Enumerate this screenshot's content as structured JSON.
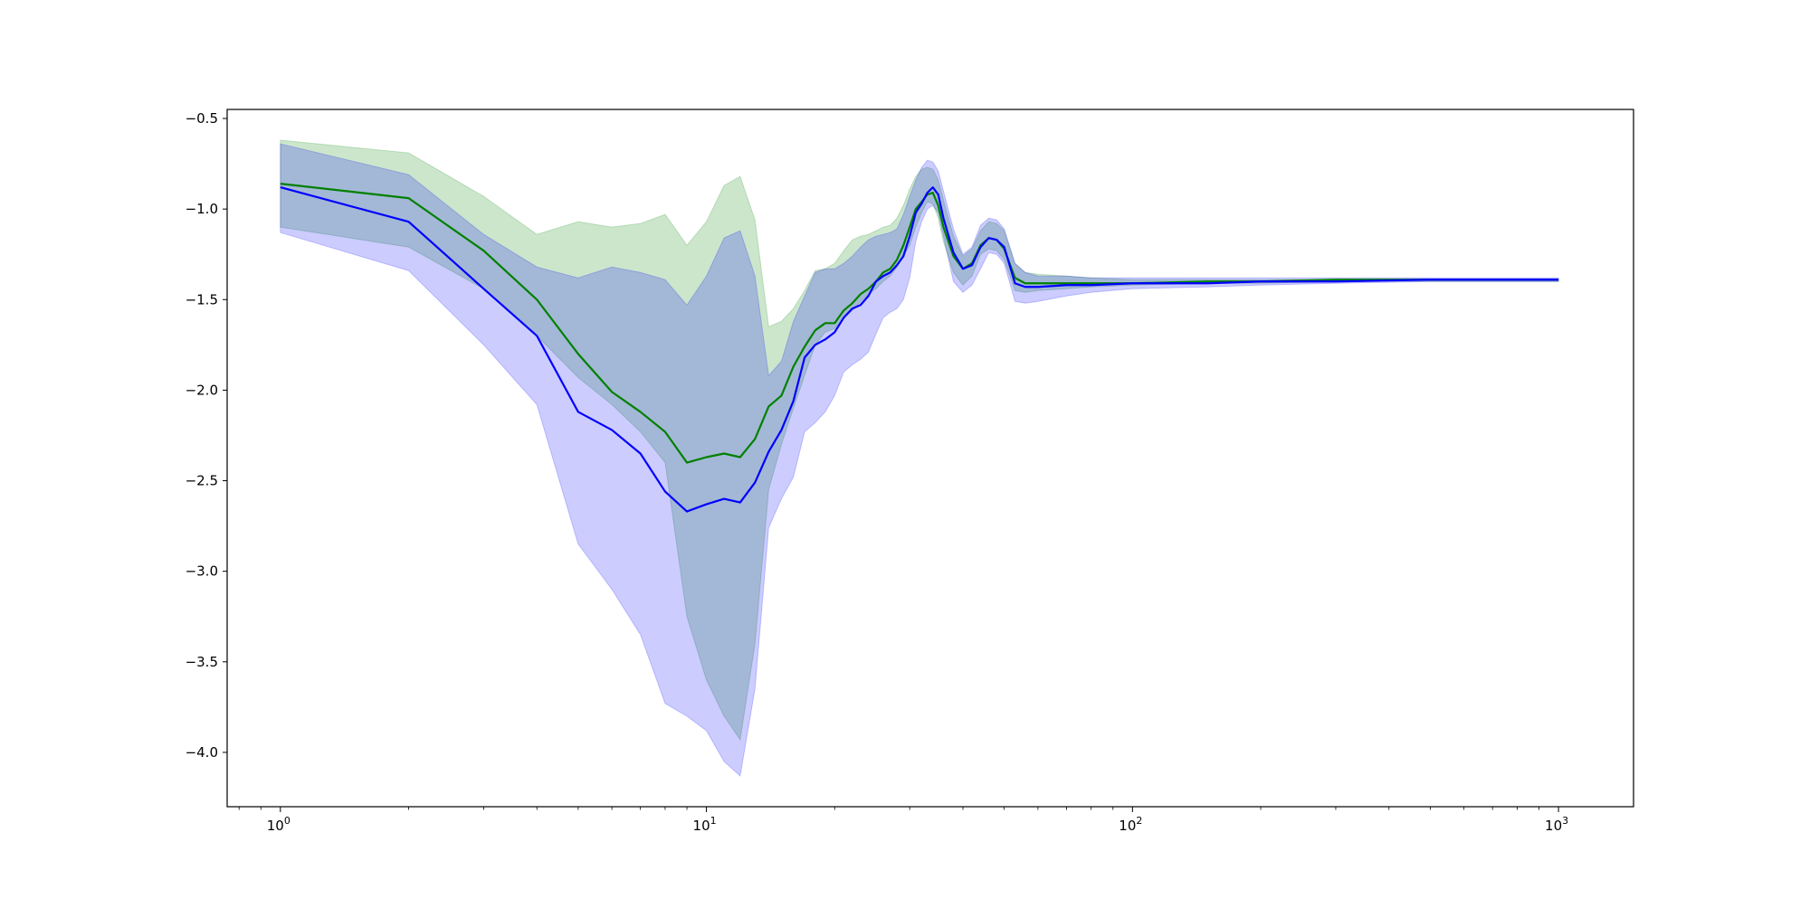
{
  "chart_data": {
    "type": "line",
    "title": "",
    "xlabel": "",
    "ylabel": "",
    "xscale": "log",
    "xlim": [
      0.75,
      1500
    ],
    "ylim": [
      -4.3,
      -0.45
    ],
    "grid": false,
    "legend": false,
    "x_ticks": [
      {
        "value": 1,
        "base": "10",
        "exp": "0"
      },
      {
        "value": 10,
        "base": "10",
        "exp": "1"
      },
      {
        "value": 100,
        "base": "10",
        "exp": "2"
      },
      {
        "value": 1000,
        "base": "10",
        "exp": "3"
      }
    ],
    "y_ticks": [
      {
        "value": -0.5,
        "label": "−0.5"
      },
      {
        "value": -1.0,
        "label": "−1.0"
      },
      {
        "value": -1.5,
        "label": "−1.5"
      },
      {
        "value": -2.0,
        "label": "−2.0"
      },
      {
        "value": -2.5,
        "label": "−2.5"
      },
      {
        "value": -3.0,
        "label": "−3.0"
      },
      {
        "value": -3.5,
        "label": "−3.5"
      },
      {
        "value": -4.0,
        "label": "−4.0"
      }
    ],
    "series": [
      {
        "color": "#008000",
        "band_color": "#008000",
        "band_opacity": 0.2,
        "x": [
          1,
          2,
          3,
          4,
          5,
          6,
          7,
          8,
          9,
          10,
          11,
          12,
          13,
          14,
          15,
          16,
          17,
          18,
          19,
          20,
          21,
          22,
          23,
          24,
          25,
          26,
          27,
          28,
          29,
          30,
          31,
          32,
          33,
          34,
          35,
          36,
          38,
          40,
          42,
          44,
          46,
          48,
          50,
          53,
          56,
          60,
          70,
          80,
          100,
          150,
          200,
          300,
          500,
          700,
          1000
        ],
        "y": [
          -0.86,
          -0.94,
          -1.23,
          -1.5,
          -1.8,
          -2.01,
          -2.12,
          -2.23,
          -2.4,
          -2.37,
          -2.35,
          -2.37,
          -2.27,
          -2.09,
          -2.03,
          -1.87,
          -1.76,
          -1.67,
          -1.63,
          -1.63,
          -1.56,
          -1.52,
          -1.47,
          -1.44,
          -1.4,
          -1.35,
          -1.33,
          -1.28,
          -1.2,
          -1.1,
          -1.0,
          -0.96,
          -0.92,
          -0.91,
          -0.98,
          -1.1,
          -1.26,
          -1.33,
          -1.3,
          -1.2,
          -1.16,
          -1.17,
          -1.22,
          -1.38,
          -1.41,
          -1.41,
          -1.41,
          -1.41,
          -1.41,
          -1.4,
          -1.4,
          -1.39,
          -1.39,
          -1.39,
          -1.39
        ],
        "lower": [
          -1.1,
          -1.21,
          -1.44,
          -1.7,
          -1.93,
          -2.08,
          -2.23,
          -2.4,
          -3.25,
          -3.6,
          -3.8,
          -3.93,
          -3.4,
          -2.55,
          -2.3,
          -2.1,
          -1.92,
          -1.75,
          -1.68,
          -1.66,
          -1.6,
          -1.56,
          -1.51,
          -1.47,
          -1.44,
          -1.4,
          -1.37,
          -1.32,
          -1.26,
          -1.2,
          -1.1,
          -1.02,
          -0.96,
          -0.97,
          -1.05,
          -1.18,
          -1.35,
          -1.42,
          -1.37,
          -1.25,
          -1.22,
          -1.23,
          -1.28,
          -1.45,
          -1.46,
          -1.45,
          -1.44,
          -1.43,
          -1.42,
          -1.41,
          -1.41,
          -1.4,
          -1.4,
          -1.4,
          -1.4
        ],
        "upper": [
          -0.62,
          -0.69,
          -0.93,
          -1.14,
          -1.07,
          -1.1,
          -1.08,
          -1.03,
          -1.2,
          -1.07,
          -0.87,
          -0.82,
          -1.06,
          -1.65,
          -1.62,
          -1.55,
          -1.45,
          -1.34,
          -1.33,
          -1.3,
          -1.23,
          -1.17,
          -1.15,
          -1.14,
          -1.12,
          -1.1,
          -1.09,
          -1.05,
          -0.98,
          -0.89,
          -0.82,
          -0.78,
          -0.77,
          -0.78,
          -0.84,
          -0.95,
          -1.15,
          -1.26,
          -1.22,
          -1.12,
          -1.07,
          -1.08,
          -1.12,
          -1.3,
          -1.35,
          -1.36,
          -1.37,
          -1.38,
          -1.39,
          -1.39,
          -1.39,
          -1.39,
          -1.39,
          -1.39,
          -1.39
        ]
      },
      {
        "color": "#0000ff",
        "band_color": "#0000ff",
        "band_opacity": 0.2,
        "x": [
          1,
          2,
          3,
          4,
          5,
          6,
          7,
          8,
          9,
          10,
          11,
          12,
          13,
          14,
          15,
          16,
          17,
          18,
          19,
          20,
          21,
          22,
          23,
          24,
          25,
          26,
          27,
          28,
          29,
          30,
          31,
          32,
          33,
          34,
          35,
          36,
          38,
          40,
          42,
          44,
          46,
          48,
          50,
          53,
          56,
          60,
          70,
          80,
          100,
          150,
          200,
          300,
          500,
          700,
          1000
        ],
        "y": [
          -0.88,
          -1.07,
          -1.44,
          -1.7,
          -2.12,
          -2.22,
          -2.35,
          -2.56,
          -2.67,
          -2.63,
          -2.6,
          -2.62,
          -2.51,
          -2.34,
          -2.22,
          -2.06,
          -1.82,
          -1.75,
          -1.72,
          -1.68,
          -1.6,
          -1.55,
          -1.53,
          -1.48,
          -1.4,
          -1.37,
          -1.35,
          -1.31,
          -1.26,
          -1.15,
          -1.02,
          -0.97,
          -0.91,
          -0.88,
          -0.92,
          -1.05,
          -1.24,
          -1.33,
          -1.31,
          -1.21,
          -1.16,
          -1.17,
          -1.21,
          -1.41,
          -1.43,
          -1.43,
          -1.42,
          -1.42,
          -1.41,
          -1.41,
          -1.4,
          -1.4,
          -1.39,
          -1.39,
          -1.39
        ],
        "lower": [
          -1.13,
          -1.34,
          -1.75,
          -2.08,
          -2.85,
          -3.1,
          -3.35,
          -3.73,
          -3.8,
          -3.88,
          -4.05,
          -4.13,
          -3.65,
          -2.76,
          -2.6,
          -2.48,
          -2.23,
          -2.18,
          -2.12,
          -2.03,
          -1.9,
          -1.86,
          -1.83,
          -1.79,
          -1.69,
          -1.6,
          -1.57,
          -1.55,
          -1.5,
          -1.38,
          -1.18,
          -1.07,
          -1.0,
          -0.98,
          -1.02,
          -1.15,
          -1.4,
          -1.46,
          -1.42,
          -1.33,
          -1.24,
          -1.25,
          -1.3,
          -1.51,
          -1.52,
          -1.51,
          -1.48,
          -1.46,
          -1.44,
          -1.43,
          -1.42,
          -1.41,
          -1.4,
          -1.4,
          -1.4
        ],
        "upper": [
          -0.64,
          -0.81,
          -1.14,
          -1.32,
          -1.38,
          -1.32,
          -1.35,
          -1.39,
          -1.53,
          -1.37,
          -1.16,
          -1.12,
          -1.37,
          -1.92,
          -1.84,
          -1.62,
          -1.48,
          -1.35,
          -1.33,
          -1.33,
          -1.3,
          -1.26,
          -1.21,
          -1.17,
          -1.15,
          -1.14,
          -1.13,
          -1.11,
          -1.03,
          -0.93,
          -0.84,
          -0.77,
          -0.73,
          -0.74,
          -0.79,
          -0.9,
          -1.11,
          -1.25,
          -1.21,
          -1.09,
          -1.05,
          -1.06,
          -1.11,
          -1.3,
          -1.35,
          -1.37,
          -1.37,
          -1.38,
          -1.38,
          -1.38,
          -1.38,
          -1.38,
          -1.38,
          -1.38,
          -1.38
        ]
      }
    ]
  }
}
